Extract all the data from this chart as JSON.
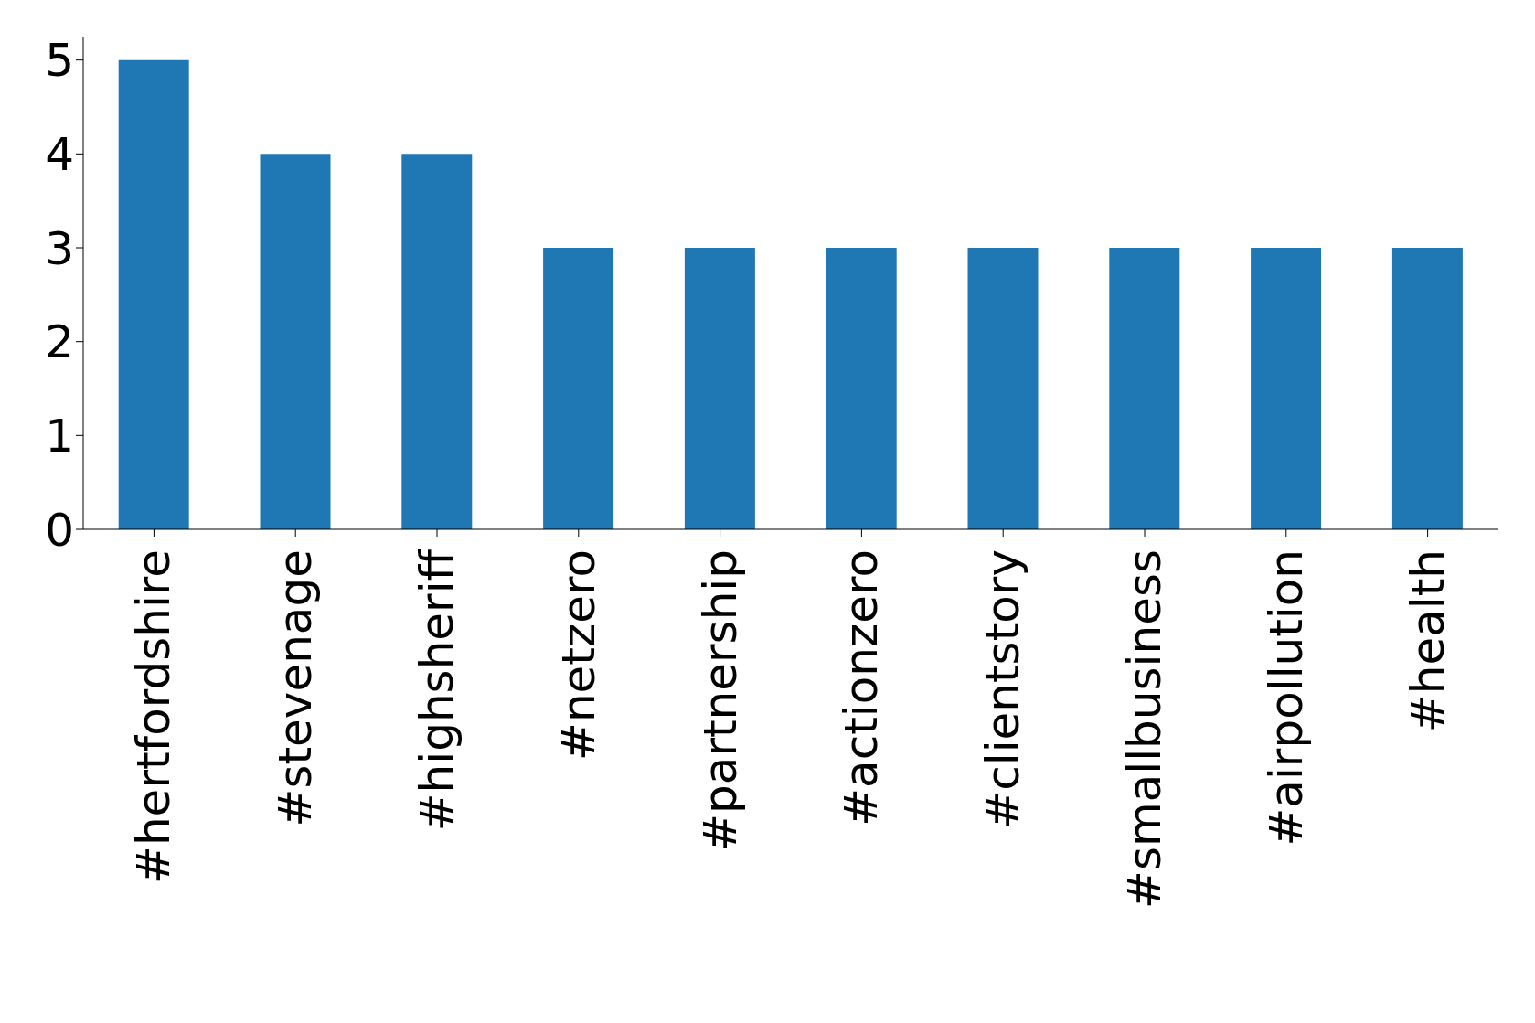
{
  "chart_data": {
    "type": "bar",
    "categories": [
      "#hertfordshire",
      "#stevenage",
      "#highsheriff",
      "#netzero",
      "#partnership",
      "#actionzero",
      "#clientstory",
      "#smallbusiness",
      "#airpollution",
      "#health"
    ],
    "values": [
      5,
      4,
      4,
      3,
      3,
      3,
      3,
      3,
      3,
      3
    ],
    "color": "#1f77b4",
    "ylim": [
      0,
      5.25
    ],
    "yticks": [
      0,
      1,
      2,
      3,
      4,
      5
    ],
    "grid": false,
    "legend": false
  }
}
